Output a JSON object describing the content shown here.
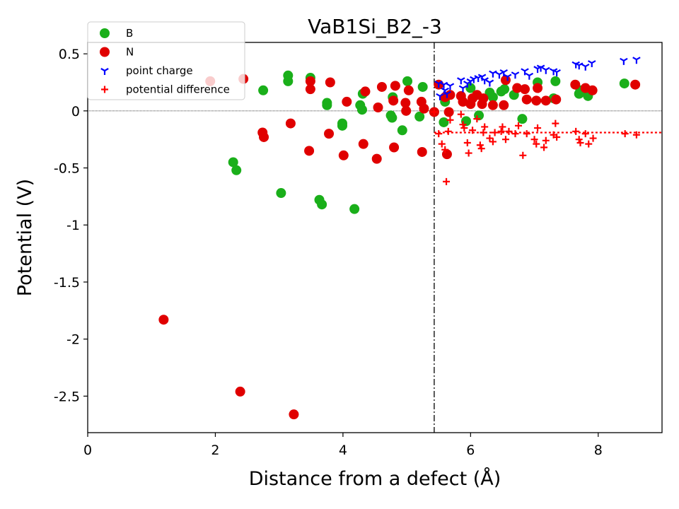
{
  "chart_data": {
    "type": "scatter",
    "title": "VaB1Si_B2_-3",
    "xlabel": "Distance from a defect (Å)",
    "ylabel": "Potential (V)",
    "xlim": [
      0,
      9
    ],
    "ylim": [
      -2.82,
      0.6
    ],
    "x_ticks": [
      0,
      2,
      4,
      6,
      8
    ],
    "x_tick_labels": [
      "0",
      "2",
      "4",
      "6",
      "8"
    ],
    "y_ticks": [
      0.5,
      0,
      -0.5,
      -1,
      -1.5,
      -2,
      -2.5
    ],
    "y_tick_labels": [
      "0.5",
      "0",
      "-0.5",
      "-1",
      "-1.5",
      "-2",
      "-2.5"
    ],
    "grid": false,
    "legend_position": "top-left",
    "reference_lines": {
      "zero_line_y": 0,
      "defect_region_x": 5.43,
      "average_potential_difference": -0.19
    },
    "series": [
      {
        "name": "B",
        "marker": "circle",
        "color": "#1aaf1a",
        "points": [
          [
            2.28,
            -0.45
          ],
          [
            2.33,
            -0.52
          ],
          [
            2.75,
            0.18
          ],
          [
            3.03,
            -0.72
          ],
          [
            3.14,
            0.31
          ],
          [
            3.14,
            0.26
          ],
          [
            3.49,
            0.29
          ],
          [
            3.63,
            -0.78
          ],
          [
            3.67,
            -0.82
          ],
          [
            3.75,
            0.07
          ],
          [
            3.75,
            0.05
          ],
          [
            3.99,
            -0.11
          ],
          [
            3.99,
            -0.13
          ],
          [
            4.18,
            -0.86
          ],
          [
            4.27,
            0.05
          ],
          [
            4.3,
            0.01
          ],
          [
            4.31,
            0.15
          ],
          [
            4.75,
            -0.04
          ],
          [
            4.77,
            -0.06
          ],
          [
            4.78,
            0.12
          ],
          [
            4.93,
            -0.17
          ],
          [
            5.01,
            0.26
          ],
          [
            5.2,
            -0.05
          ],
          [
            5.25,
            0.21
          ],
          [
            5.58,
            -0.1
          ],
          [
            5.6,
            0.08
          ],
          [
            5.93,
            -0.09
          ],
          [
            6.0,
            0.2
          ],
          [
            6.13,
            -0.04
          ],
          [
            6.3,
            0.16
          ],
          [
            6.35,
            0.12
          ],
          [
            6.48,
            0.17
          ],
          [
            6.53,
            0.19
          ],
          [
            6.68,
            0.14
          ],
          [
            6.81,
            -0.07
          ],
          [
            7.05,
            0.25
          ],
          [
            7.3,
            0.11
          ],
          [
            7.33,
            0.26
          ],
          [
            7.7,
            0.15
          ],
          [
            7.72,
            0.18
          ],
          [
            7.84,
            0.13
          ],
          [
            8.41,
            0.24
          ]
        ]
      },
      {
        "name": "N",
        "marker": "circle",
        "color": "#e00000",
        "points": [
          [
            1.19,
            -1.83
          ],
          [
            1.92,
            0.26
          ],
          [
            2.39,
            -2.46
          ],
          [
            2.44,
            0.28
          ],
          [
            2.74,
            -0.19
          ],
          [
            2.76,
            -0.23
          ],
          [
            3.18,
            -0.11
          ],
          [
            3.23,
            -2.66
          ],
          [
            3.47,
            -0.35
          ],
          [
            3.49,
            0.26
          ],
          [
            3.49,
            0.19
          ],
          [
            3.78,
            -0.2
          ],
          [
            3.8,
            0.25
          ],
          [
            4.01,
            -0.39
          ],
          [
            4.06,
            0.08
          ],
          [
            4.32,
            -0.29
          ],
          [
            4.35,
            0.17
          ],
          [
            4.53,
            -0.42
          ],
          [
            4.55,
            0.03
          ],
          [
            4.61,
            0.21
          ],
          [
            4.79,
            0.09
          ],
          [
            4.8,
            -0.32
          ],
          [
            4.82,
            0.22
          ],
          [
            4.98,
            0.07
          ],
          [
            4.99,
            0.0
          ],
          [
            5.03,
            0.18
          ],
          [
            5.23,
            0.08
          ],
          [
            5.24,
            -0.36
          ],
          [
            5.27,
            0.02
          ],
          [
            5.43,
            -0.01
          ],
          [
            5.5,
            0.23
          ],
          [
            5.6,
            0.12
          ],
          [
            5.63,
            -0.38
          ],
          [
            5.66,
            -0.01
          ],
          [
            5.68,
            0.14
          ],
          [
            5.85,
            0.13
          ],
          [
            5.88,
            0.08
          ],
          [
            6.0,
            0.06
          ],
          [
            6.03,
            0.11
          ],
          [
            6.1,
            0.14
          ],
          [
            6.18,
            0.06
          ],
          [
            6.2,
            0.11
          ],
          [
            6.35,
            0.05
          ],
          [
            6.52,
            0.05
          ],
          [
            6.55,
            0.27
          ],
          [
            6.73,
            0.2
          ],
          [
            6.85,
            0.19
          ],
          [
            6.88,
            0.1
          ],
          [
            7.03,
            0.09
          ],
          [
            7.05,
            0.2
          ],
          [
            7.18,
            0.09
          ],
          [
            7.34,
            0.1
          ],
          [
            7.64,
            0.23
          ],
          [
            7.8,
            0.2
          ],
          [
            7.91,
            0.18
          ],
          [
            8.58,
            0.23
          ]
        ]
      },
      {
        "name": "point charge",
        "marker": "tri_down",
        "color": "#0000ff",
        "points": [
          [
            5.5,
            0.24
          ],
          [
            5.52,
            0.13
          ],
          [
            5.58,
            0.23
          ],
          [
            5.6,
            0.18
          ],
          [
            5.63,
            0.15
          ],
          [
            5.68,
            0.22
          ],
          [
            5.85,
            0.27
          ],
          [
            5.88,
            0.2
          ],
          [
            5.95,
            0.24
          ],
          [
            6.0,
            0.26
          ],
          [
            6.05,
            0.28
          ],
          [
            6.12,
            0.29
          ],
          [
            6.18,
            0.3
          ],
          [
            6.22,
            0.27
          ],
          [
            6.3,
            0.25
          ],
          [
            6.35,
            0.33
          ],
          [
            6.45,
            0.32
          ],
          [
            6.52,
            0.34
          ],
          [
            6.58,
            0.3
          ],
          [
            6.7,
            0.32
          ],
          [
            6.85,
            0.35
          ],
          [
            6.92,
            0.31
          ],
          [
            7.05,
            0.37
          ],
          [
            7.1,
            0.38
          ],
          [
            7.18,
            0.36
          ],
          [
            7.3,
            0.35
          ],
          [
            7.35,
            0.34
          ],
          [
            7.65,
            0.41
          ],
          [
            7.7,
            0.4
          ],
          [
            7.8,
            0.39
          ],
          [
            7.9,
            0.42
          ],
          [
            8.4,
            0.44
          ],
          [
            8.6,
            0.45
          ]
        ]
      },
      {
        "name": "potential difference",
        "marker": "plus",
        "color": "#ff0000",
        "points": [
          [
            5.43,
            -0.01
          ],
          [
            5.5,
            -0.2
          ],
          [
            5.55,
            -0.29
          ],
          [
            5.6,
            -0.34
          ],
          [
            5.62,
            -0.62
          ],
          [
            5.65,
            -0.18
          ],
          [
            5.68,
            -0.08
          ],
          [
            5.85,
            -0.03
          ],
          [
            5.88,
            -0.12
          ],
          [
            5.9,
            -0.15
          ],
          [
            5.95,
            -0.28
          ],
          [
            5.97,
            -0.37
          ],
          [
            6.03,
            -0.17
          ],
          [
            6.1,
            -0.07
          ],
          [
            6.15,
            -0.3
          ],
          [
            6.17,
            -0.33
          ],
          [
            6.2,
            -0.19
          ],
          [
            6.22,
            -0.14
          ],
          [
            6.3,
            -0.24
          ],
          [
            6.35,
            -0.27
          ],
          [
            6.38,
            -0.19
          ],
          [
            6.48,
            -0.18
          ],
          [
            6.5,
            -0.14
          ],
          [
            6.55,
            -0.25
          ],
          [
            6.6,
            -0.18
          ],
          [
            6.7,
            -0.2
          ],
          [
            6.75,
            -0.13
          ],
          [
            6.82,
            -0.39
          ],
          [
            6.88,
            -0.2
          ],
          [
            7.0,
            -0.25
          ],
          [
            7.03,
            -0.29
          ],
          [
            7.05,
            -0.15
          ],
          [
            7.15,
            -0.32
          ],
          [
            7.18,
            -0.26
          ],
          [
            7.3,
            -0.21
          ],
          [
            7.33,
            -0.11
          ],
          [
            7.35,
            -0.23
          ],
          [
            7.65,
            -0.18
          ],
          [
            7.7,
            -0.25
          ],
          [
            7.72,
            -0.28
          ],
          [
            7.8,
            -0.2
          ],
          [
            7.85,
            -0.29
          ],
          [
            7.92,
            -0.24
          ],
          [
            8.42,
            -0.2
          ],
          [
            8.6,
            -0.21
          ]
        ]
      }
    ]
  }
}
